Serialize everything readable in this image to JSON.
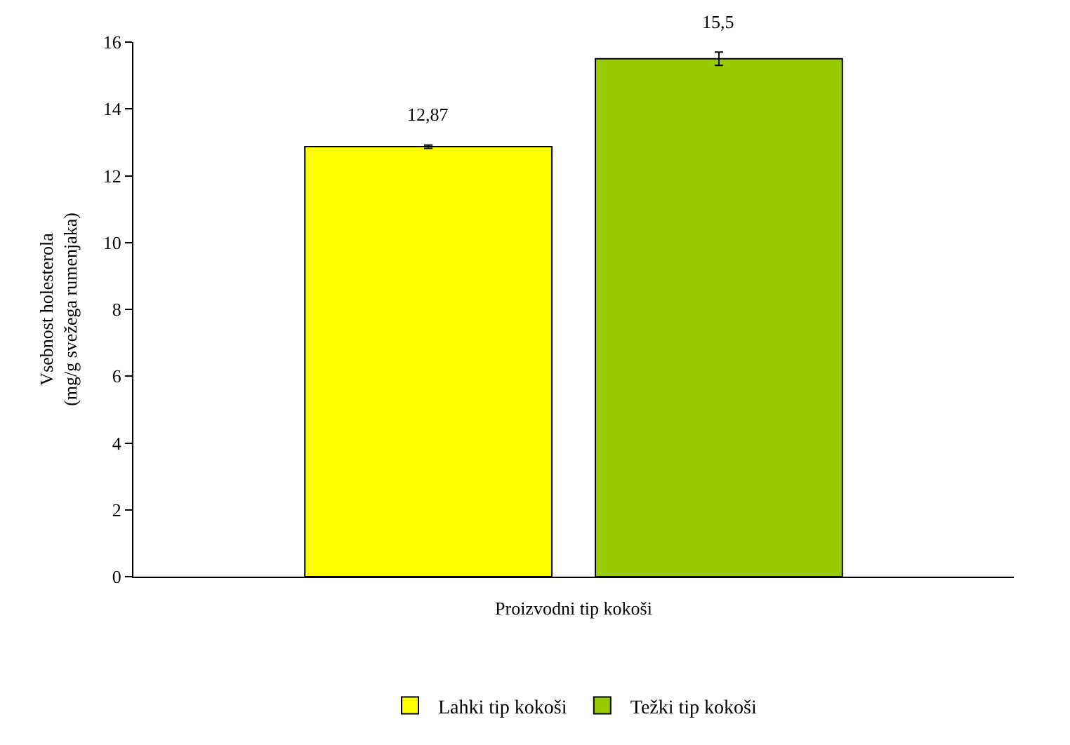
{
  "chart_data": {
    "type": "bar",
    "xlabel": "Proizvodni tip kokoši",
    "ylabel": "Vsebnost holesterola\n(mg/g svežega rumenjaka)",
    "categories": [
      null
    ],
    "series": [
      {
        "name": "Lahki tip kokoši",
        "color": "#ffff00",
        "values": [
          12.87
        ],
        "errors": [
          0.05
        ],
        "value_labels": [
          "12,87"
        ]
      },
      {
        "name": "Težki tip kokoši",
        "color": "#99cc00",
        "values": [
          15.5
        ],
        "errors": [
          0.2
        ],
        "value_labels": [
          "15,5"
        ]
      }
    ],
    "ylim": [
      0,
      16
    ],
    "yticks": [
      0,
      2,
      4,
      6,
      8,
      10,
      12,
      14,
      16
    ],
    "legend": "bottom"
  }
}
